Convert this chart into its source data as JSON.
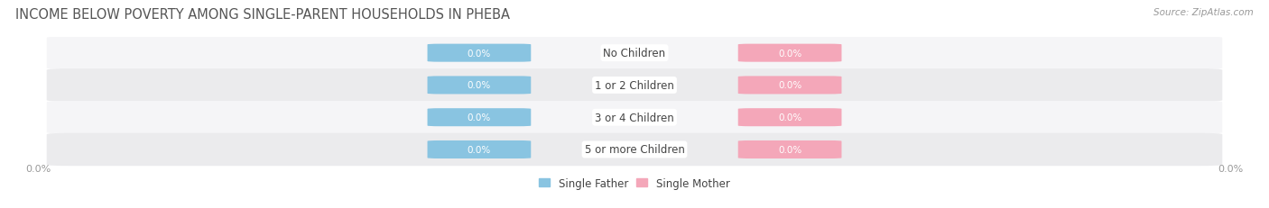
{
  "title": "INCOME BELOW POVERTY AMONG SINGLE-PARENT HOUSEHOLDS IN PHEBA",
  "source": "Source: ZipAtlas.com",
  "categories": [
    "No Children",
    "1 or 2 Children",
    "3 or 4 Children",
    "5 or more Children"
  ],
  "father_values": [
    0.0,
    0.0,
    0.0,
    0.0
  ],
  "mother_values": [
    0.0,
    0.0,
    0.0,
    0.0
  ],
  "father_color": "#89C4E1",
  "mother_color": "#F4A7B9",
  "row_bg_even": "#F5F5F7",
  "row_bg_odd": "#EBEBED",
  "category_label_color": "#444444",
  "title_color": "#555555",
  "source_color": "#999999",
  "axis_label_color": "#999999",
  "title_fontsize": 10.5,
  "source_fontsize": 7.5,
  "category_fontsize": 8.5,
  "value_fontsize": 7.5,
  "legend_fontsize": 8.5,
  "axis_tick_fontsize": 8,
  "background_color": "#FFFFFF",
  "value_label": "0.0%"
}
